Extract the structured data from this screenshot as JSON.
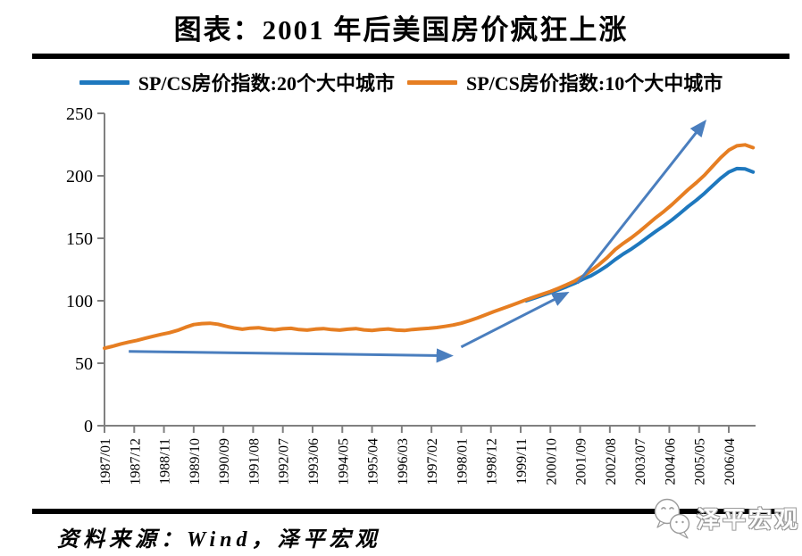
{
  "title": "图表：2001 年后美国房价疯狂上涨",
  "legend": [
    {
      "label": "SP/CS房价指数:20个大中城市",
      "color": "#1E78BE"
    },
    {
      "label": "SP/CS房价指数:10个大中城市",
      "color": "#E67E22"
    }
  ],
  "source_note": "资料来源：Wind，泽平宏观",
  "logo": {
    "text": "泽平宏观"
  },
  "colors": {
    "axis": "#808080",
    "arrow": "#4A7EBE",
    "rule": "#000000",
    "series_blue": "#1E78BE",
    "series_orange": "#E67E22"
  },
  "chart_data": {
    "type": "line",
    "title": "图表：2001 年后美国房价疯狂上涨",
    "xlabel": "",
    "ylabel": "",
    "ylim": [
      0,
      250
    ],
    "y_ticks": [
      0,
      50,
      100,
      150,
      200,
      250
    ],
    "grid": false,
    "legend_position": "top",
    "x_tick_labels": [
      "1987/01",
      "1987/12",
      "1988/11",
      "1989/10",
      "1990/09",
      "1991/08",
      "1992/07",
      "1993/06",
      "1994/05",
      "1995/04",
      "1996/03",
      "1997/02",
      "1998/01",
      "1998/12",
      "1999/11",
      "2000/10",
      "2001/09",
      "2002/08",
      "2003/07",
      "2004/06",
      "2005/05",
      "2006/04"
    ],
    "months_per_tick": 11,
    "series": [
      {
        "id": "sp-cs-20-city",
        "name": "SP/CS房价指数:20个大中城市",
        "color": "#1E78BE",
        "start": "2000/01",
        "start_month": 156,
        "step_months": 3,
        "values": [
          100.0,
          102.1,
          104.3,
          106.4,
          108.8,
          111.3,
          114.0,
          117.2,
          120.0,
          123.8,
          128.0,
          133.0,
          137.5,
          141.5,
          146.0,
          150.8,
          155.5,
          160.0,
          164.8,
          170.0,
          175.5,
          180.5,
          186.0,
          192.0,
          198.0,
          203.0,
          205.8,
          205.5,
          203.0
        ]
      },
      {
        "id": "sp-cs-10-city",
        "name": "SP/CS房价指数:10个大中城市",
        "color": "#E67E22",
        "start": "1987/01",
        "start_month": 0,
        "step_months": 3,
        "values": [
          62.0,
          63.6,
          65.4,
          66.9,
          68.3,
          69.9,
          71.6,
          73.1,
          74.4,
          76.3,
          78.8,
          80.9,
          81.7,
          82.0,
          81.2,
          79.6,
          78.2,
          77.2,
          78.1,
          78.4,
          77.4,
          76.8,
          77.6,
          77.9,
          76.9,
          76.5,
          77.3,
          77.7,
          76.9,
          76.5,
          77.2,
          77.7,
          76.7,
          76.3,
          77.0,
          77.4,
          76.5,
          76.2,
          77.0,
          77.5,
          77.9,
          78.6,
          79.5,
          80.6,
          82.0,
          84.0,
          86.3,
          88.8,
          91.3,
          93.6,
          95.9,
          98.3,
          100.8,
          103.0,
          105.2,
          107.4,
          110.0,
          112.8,
          115.8,
          119.6,
          124.0,
          129.0,
          134.5,
          141.0,
          146.0,
          150.5,
          155.5,
          161.0,
          166.5,
          171.5,
          177.0,
          183.0,
          189.0,
          194.5,
          200.5,
          207.5,
          214.5,
          220.5,
          224.0,
          224.8,
          222.5
        ]
      }
    ],
    "annotations": {
      "color": "#4A7EBE",
      "arrows": [
        {
          "from_month": 9,
          "from_value": 59.5,
          "to_month": 128,
          "to_value": 56
        },
        {
          "from_month": 132,
          "from_value": 63,
          "to_month": 171,
          "to_value": 106
        },
        {
          "from_month": 175,
          "from_value": 114,
          "to_month": 222,
          "to_value": 243
        }
      ]
    }
  }
}
